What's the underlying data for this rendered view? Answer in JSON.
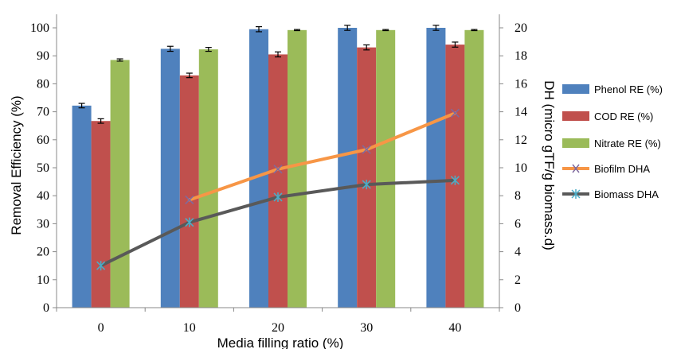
{
  "chart_data": {
    "type": "bar",
    "categories": [
      "0",
      "10",
      "20",
      "30",
      "40"
    ],
    "xlabel": "Media filling ratio (%)",
    "ylabel": "Removal Efficiency (%)",
    "y2label": "DH (micro gTF/g biomass.d)",
    "ylim": [
      0,
      100
    ],
    "y2lim": [
      0,
      20
    ],
    "yticks": [
      "0",
      "10",
      "20",
      "30",
      "40",
      "50",
      "60",
      "70",
      "80",
      "90",
      "100"
    ],
    "y2ticks": [
      "0",
      "2",
      "4",
      "6",
      "8",
      "10",
      "12",
      "14",
      "16",
      "18",
      "20"
    ],
    "grid": false,
    "legend_position": "right",
    "bar_series": [
      {
        "name": "Phenol RE (%)",
        "color": "#4f81bd",
        "values": [
          72.2,
          92.5,
          99.5,
          100,
          100
        ],
        "errors": [
          0.8,
          0.9,
          0.9,
          0.9,
          0.9
        ]
      },
      {
        "name": "COD RE (%)",
        "color": "#c0504d",
        "values": [
          66.7,
          83.0,
          90.5,
          93.0,
          94.0
        ],
        "errors": [
          0.8,
          0.8,
          0.9,
          0.9,
          0.9
        ]
      },
      {
        "name": "Nitrate RE (%)",
        "color": "#9bbb59",
        "values": [
          88.5,
          92.3,
          99.2,
          99.2,
          99.2
        ],
        "errors": [
          0.4,
          0.7,
          0.2,
          0.2,
          0.2
        ]
      }
    ],
    "line_series": [
      {
        "name": "Biofilm DHA",
        "color": "#f79646",
        "marker": "x",
        "marker_color": "#7f6a9f",
        "values": [
          null,
          7.7,
          9.9,
          11.3,
          13.9
        ]
      },
      {
        "name": "Biomass DHA",
        "color": "#595959",
        "marker": "asterisk",
        "marker_color": "#4bacc6",
        "values": [
          3.0,
          6.1,
          7.9,
          8.8,
          9.1
        ]
      }
    ]
  }
}
